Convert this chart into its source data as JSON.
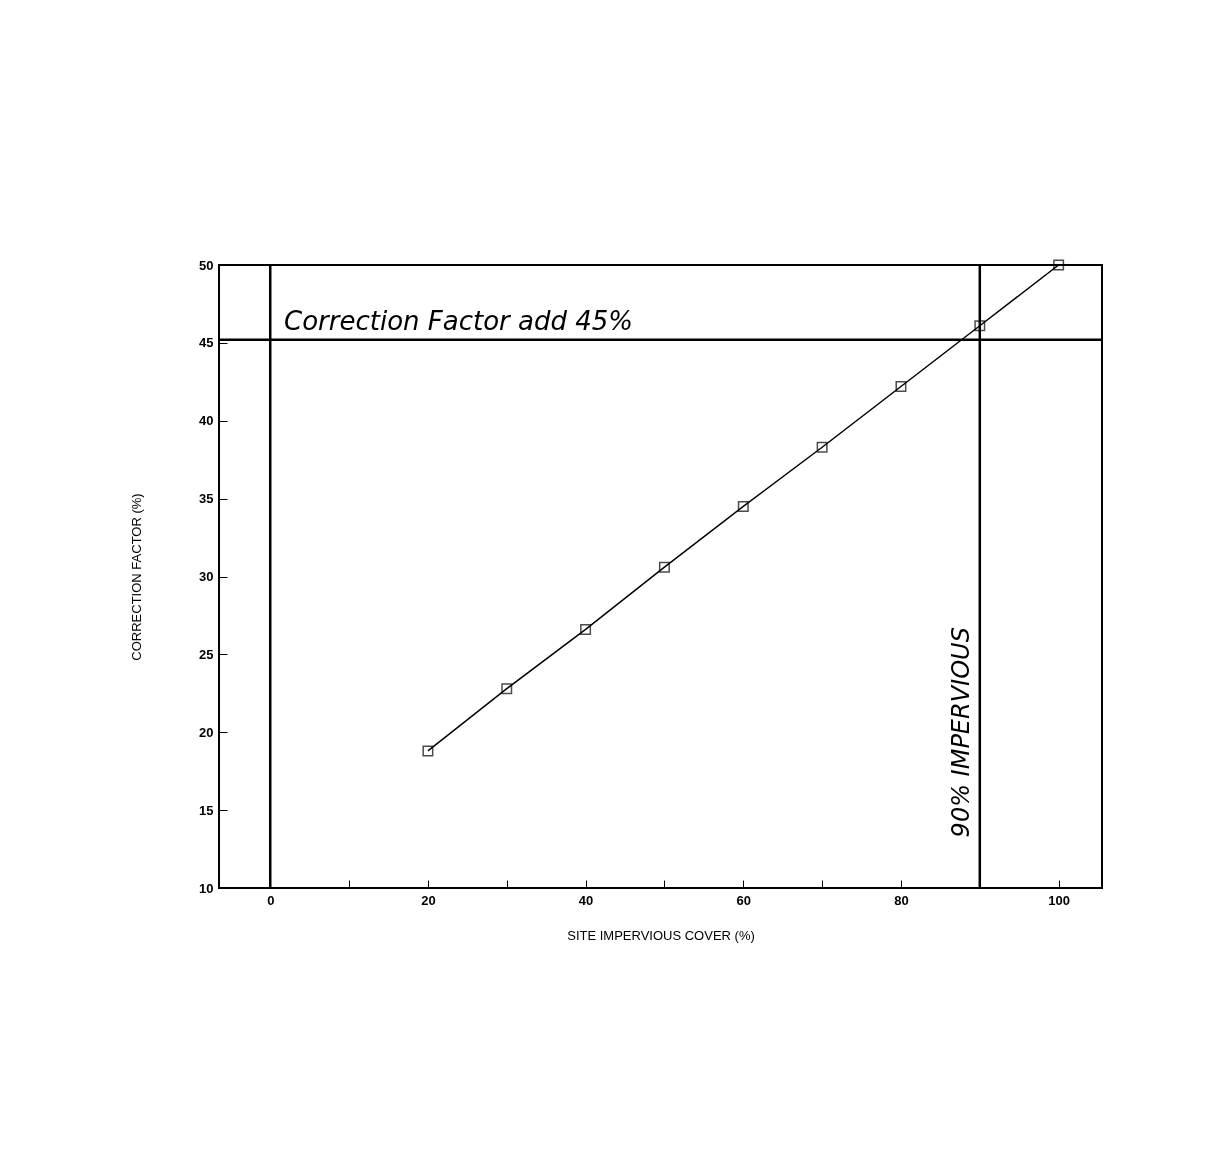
{
  "chart_data": {
    "type": "line",
    "xlabel": "SITE IMPERVIOUS COVER (%)",
    "ylabel": "CORRECTION FACTOR (%)",
    "x": [
      20,
      30,
      40,
      50,
      60,
      70,
      80,
      90,
      100
    ],
    "values": [
      18.8,
      22.8,
      26.6,
      30.6,
      34.5,
      38.3,
      42.2,
      46.1,
      50
    ],
    "color": "#000000",
    "marker": "square",
    "grid": false,
    "xlim": [
      -6.5,
      105.5
    ],
    "ylim": [
      10,
      50
    ],
    "xticks": [
      0,
      {
        "value": 10,
        "label": null
      },
      20,
      {
        "value": 30,
        "label": null
      },
      40,
      {
        "value": 50,
        "label": null
      },
      60,
      {
        "value": 70,
        "label": null
      },
      80,
      {
        "value": 90,
        "label": null
      },
      100
    ],
    "yticks": [
      10,
      15,
      20,
      25,
      30,
      35,
      40,
      45,
      50
    ],
    "ref_lines": [
      {
        "axis": "x",
        "value": 0,
        "label": null
      },
      {
        "axis": "x",
        "value": 90,
        "label": "90% IMPERVIOUS"
      },
      {
        "axis": "y",
        "value": 45.2,
        "label": "Correction Factor add 45%"
      }
    ]
  }
}
